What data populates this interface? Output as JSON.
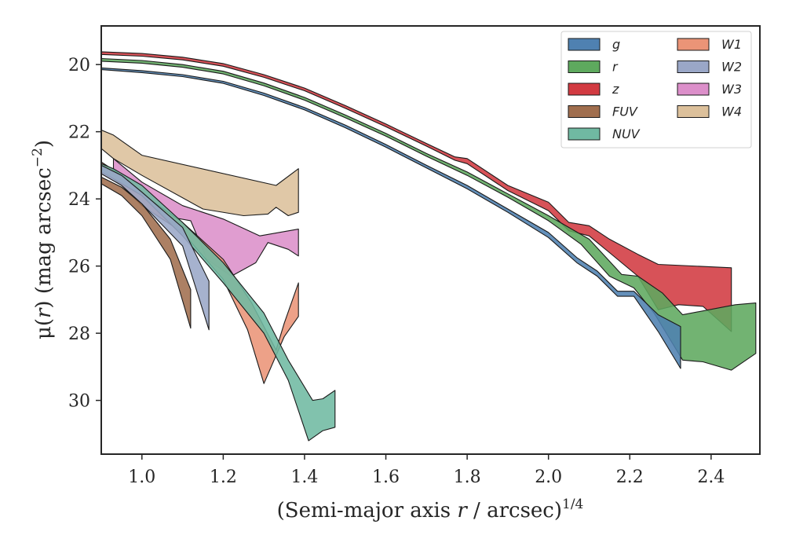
{
  "chart_data": {
    "type": "area",
    "title": "",
    "xlabel": "(Semi-major axis r / arcsec)1/4",
    "xlabel_parts": {
      "pre": "(Semi-major axis ",
      "var": "r",
      "mid": " / arcsec)",
      "sup": "1/4"
    },
    "ylabel": "μ(r) (mag arcsec−2)",
    "ylabel_parts": {
      "pre": "μ(",
      "var": "r",
      "mid": ") (mag arcsec",
      "sup": "−2",
      "post": ")"
    },
    "xlim": [
      0.9,
      2.52
    ],
    "ylim": [
      31.6,
      18.85
    ],
    "y_inverted": true,
    "xticks": [
      "1.0",
      "1.2",
      "1.4",
      "1.6",
      "1.8",
      "2.0",
      "2.2",
      "2.4"
    ],
    "xtick_values": [
      1.0,
      1.2,
      1.4,
      1.6,
      1.8,
      2.0,
      2.2,
      2.4
    ],
    "yticks": [
      "20",
      "22",
      "24",
      "26",
      "28",
      "30"
    ],
    "ytick_values": [
      20,
      22,
      24,
      26,
      28,
      30
    ],
    "grid": false,
    "legend_position": "top-right",
    "legend_columns": 2,
    "series": [
      {
        "name": "W4",
        "color": "#dcc09b",
        "upper": [
          [
            0.9,
            21.95
          ],
          [
            0.93,
            22.1
          ],
          [
            1.0,
            22.7
          ],
          [
            1.33,
            23.6
          ],
          [
            1.385,
            23.1
          ]
        ],
        "lower": [
          [
            0.9,
            22.5
          ],
          [
            0.93,
            22.8
          ],
          [
            1.0,
            23.3
          ],
          [
            1.15,
            24.3
          ],
          [
            1.25,
            24.5
          ],
          [
            1.31,
            24.45
          ],
          [
            1.33,
            24.25
          ],
          [
            1.36,
            24.5
          ],
          [
            1.385,
            24.4
          ]
        ]
      },
      {
        "name": "W3",
        "color": "#dc8fca",
        "upper": [
          [
            0.93,
            22.8
          ],
          [
            1.0,
            23.5
          ],
          [
            1.1,
            24.2
          ],
          [
            1.2,
            24.6
          ],
          [
            1.29,
            25.1
          ],
          [
            1.385,
            24.9
          ]
        ],
        "lower": [
          [
            0.93,
            23.1
          ],
          [
            1.0,
            23.9
          ],
          [
            1.05,
            24.5
          ],
          [
            1.12,
            24.65
          ],
          [
            1.16,
            25.8
          ],
          [
            1.22,
            26.3
          ],
          [
            1.28,
            25.9
          ],
          [
            1.31,
            25.3
          ],
          [
            1.36,
            25.5
          ],
          [
            1.385,
            25.7
          ]
        ]
      },
      {
        "name": "W1",
        "color": "#eb9477",
        "upper": [
          [
            0.9,
            22.9
          ],
          [
            0.95,
            23.3
          ],
          [
            1.0,
            23.85
          ],
          [
            1.1,
            24.7
          ],
          [
            1.2,
            25.8
          ],
          [
            1.27,
            27.1
          ],
          [
            1.33,
            28.5
          ],
          [
            1.35,
            27.7
          ],
          [
            1.385,
            26.5
          ]
        ],
        "lower": [
          [
            0.9,
            23.1
          ],
          [
            0.95,
            23.6
          ],
          [
            1.0,
            24.2
          ],
          [
            1.1,
            25.0
          ],
          [
            1.2,
            26.4
          ],
          [
            1.26,
            27.9
          ],
          [
            1.3,
            29.5
          ],
          [
            1.35,
            28.1
          ],
          [
            1.385,
            27.5
          ]
        ]
      },
      {
        "name": "NUV",
        "color": "#70b9a2",
        "upper": [
          [
            0.9,
            22.95
          ],
          [
            0.93,
            23.1
          ],
          [
            1.0,
            23.6
          ],
          [
            1.1,
            24.7
          ],
          [
            1.2,
            25.9
          ],
          [
            1.3,
            27.4
          ],
          [
            1.36,
            28.8
          ],
          [
            1.42,
            30.0
          ],
          [
            1.445,
            29.95
          ],
          [
            1.475,
            29.7
          ]
        ],
        "lower": [
          [
            0.9,
            23.2
          ],
          [
            0.93,
            23.4
          ],
          [
            1.0,
            23.9
          ],
          [
            1.1,
            25.1
          ],
          [
            1.2,
            26.5
          ],
          [
            1.3,
            28.0
          ],
          [
            1.36,
            29.4
          ],
          [
            1.41,
            31.2
          ],
          [
            1.445,
            30.9
          ],
          [
            1.475,
            30.8
          ]
        ]
      },
      {
        "name": "W2",
        "color": "#9aa7c7",
        "upper": [
          [
            0.9,
            23.0
          ],
          [
            0.95,
            23.3
          ],
          [
            1.0,
            23.8
          ],
          [
            1.1,
            24.85
          ],
          [
            1.165,
            26.45
          ]
        ],
        "lower": [
          [
            0.9,
            23.25
          ],
          [
            0.95,
            23.6
          ],
          [
            1.0,
            24.15
          ],
          [
            1.1,
            25.4
          ],
          [
            1.165,
            27.9
          ]
        ]
      },
      {
        "name": "FUV",
        "color": "#a06e4e",
        "upper": [
          [
            0.9,
            23.35
          ],
          [
            0.95,
            23.65
          ],
          [
            1.0,
            24.15
          ],
          [
            1.07,
            25.2
          ],
          [
            1.12,
            26.7
          ]
        ],
        "lower": [
          [
            0.9,
            23.55
          ],
          [
            0.95,
            23.9
          ],
          [
            1.0,
            24.5
          ],
          [
            1.07,
            25.8
          ],
          [
            1.12,
            27.85
          ]
        ]
      },
      {
        "name": "z",
        "color": "#d23a41",
        "upper": [
          [
            0.9,
            19.62
          ],
          [
            1.0,
            19.67
          ],
          [
            1.1,
            19.78
          ],
          [
            1.2,
            19.97
          ],
          [
            1.3,
            20.3
          ],
          [
            1.4,
            20.7
          ],
          [
            1.5,
            21.22
          ],
          [
            1.6,
            21.77
          ],
          [
            1.7,
            22.35
          ],
          [
            1.77,
            22.75
          ],
          [
            1.8,
            22.8
          ],
          [
            1.9,
            23.6
          ],
          [
            2.0,
            24.1
          ],
          [
            2.05,
            24.7
          ],
          [
            2.1,
            24.8
          ],
          [
            2.15,
            25.2
          ],
          [
            2.22,
            25.65
          ],
          [
            2.27,
            25.95
          ],
          [
            2.45,
            26.05
          ]
        ],
        "lower": [
          [
            0.9,
            19.7
          ],
          [
            1.0,
            19.75
          ],
          [
            1.1,
            19.86
          ],
          [
            1.2,
            20.05
          ],
          [
            1.3,
            20.38
          ],
          [
            1.4,
            20.78
          ],
          [
            1.5,
            21.3
          ],
          [
            1.6,
            21.85
          ],
          [
            1.7,
            22.43
          ],
          [
            1.77,
            22.85
          ],
          [
            1.8,
            22.95
          ],
          [
            1.9,
            23.75
          ],
          [
            2.0,
            24.35
          ],
          [
            2.05,
            24.95
          ],
          [
            2.1,
            25.1
          ],
          [
            2.15,
            25.6
          ],
          [
            2.22,
            26.3
          ],
          [
            2.27,
            27.3
          ],
          [
            2.32,
            27.15
          ],
          [
            2.38,
            27.2
          ],
          [
            2.45,
            27.95
          ]
        ]
      },
      {
        "name": "r",
        "color": "#5ea95e",
        "upper": [
          [
            0.9,
            19.82
          ],
          [
            1.0,
            19.88
          ],
          [
            1.1,
            20.0
          ],
          [
            1.2,
            20.2
          ],
          [
            1.3,
            20.55
          ],
          [
            1.4,
            20.98
          ],
          [
            1.5,
            21.5
          ],
          [
            1.6,
            22.05
          ],
          [
            1.7,
            22.65
          ],
          [
            1.8,
            23.2
          ],
          [
            1.9,
            23.85
          ],
          [
            2.0,
            24.5
          ],
          [
            2.1,
            25.2
          ],
          [
            2.18,
            26.25
          ],
          [
            2.22,
            26.3
          ],
          [
            2.28,
            26.8
          ],
          [
            2.33,
            27.45
          ],
          [
            2.46,
            27.15
          ],
          [
            2.51,
            27.1
          ]
        ],
        "lower": [
          [
            0.9,
            19.9
          ],
          [
            1.0,
            19.96
          ],
          [
            1.1,
            20.08
          ],
          [
            1.2,
            20.28
          ],
          [
            1.3,
            20.63
          ],
          [
            1.4,
            21.06
          ],
          [
            1.5,
            21.58
          ],
          [
            1.6,
            22.13
          ],
          [
            1.7,
            22.73
          ],
          [
            1.8,
            23.3
          ],
          [
            1.9,
            23.95
          ],
          [
            2.0,
            24.65
          ],
          [
            2.08,
            25.35
          ],
          [
            2.15,
            26.3
          ],
          [
            2.21,
            26.65
          ],
          [
            2.26,
            27.4
          ],
          [
            2.33,
            28.8
          ],
          [
            2.38,
            28.85
          ],
          [
            2.45,
            29.1
          ],
          [
            2.51,
            28.6
          ]
        ]
      },
      {
        "name": "g",
        "color": "#4f81b1",
        "upper": [
          [
            0.9,
            20.1
          ],
          [
            1.0,
            20.18
          ],
          [
            1.1,
            20.3
          ],
          [
            1.2,
            20.5
          ],
          [
            1.3,
            20.85
          ],
          [
            1.4,
            21.28
          ],
          [
            1.5,
            21.8
          ],
          [
            1.6,
            22.38
          ],
          [
            1.7,
            23.0
          ],
          [
            1.8,
            23.6
          ],
          [
            1.9,
            24.3
          ],
          [
            2.0,
            25.0
          ],
          [
            2.07,
            25.75
          ],
          [
            2.12,
            26.15
          ],
          [
            2.17,
            26.75
          ],
          [
            2.21,
            26.75
          ],
          [
            2.27,
            27.45
          ],
          [
            2.325,
            27.8
          ]
        ],
        "lower": [
          [
            0.9,
            20.15
          ],
          [
            1.0,
            20.24
          ],
          [
            1.1,
            20.36
          ],
          [
            1.2,
            20.56
          ],
          [
            1.3,
            20.92
          ],
          [
            1.4,
            21.35
          ],
          [
            1.5,
            21.88
          ],
          [
            1.6,
            22.46
          ],
          [
            1.7,
            23.08
          ],
          [
            1.8,
            23.7
          ],
          [
            1.9,
            24.4
          ],
          [
            2.0,
            25.15
          ],
          [
            2.07,
            25.9
          ],
          [
            2.12,
            26.3
          ],
          [
            2.17,
            26.9
          ],
          [
            2.21,
            26.9
          ],
          [
            2.27,
            27.95
          ],
          [
            2.325,
            29.05
          ]
        ]
      }
    ],
    "legend": [
      {
        "name": "g",
        "color": "#4f81b1"
      },
      {
        "name": "r",
        "color": "#5ea95e"
      },
      {
        "name": "z",
        "color": "#d23a41"
      },
      {
        "name": "FUV",
        "color": "#a06e4e"
      },
      {
        "name": "NUV",
        "color": "#70b9a2"
      },
      {
        "name": "W1",
        "color": "#eb9477"
      },
      {
        "name": "W2",
        "color": "#9aa7c7"
      },
      {
        "name": "W3",
        "color": "#dc8fca"
      },
      {
        "name": "W4",
        "color": "#dcc09b"
      }
    ]
  }
}
